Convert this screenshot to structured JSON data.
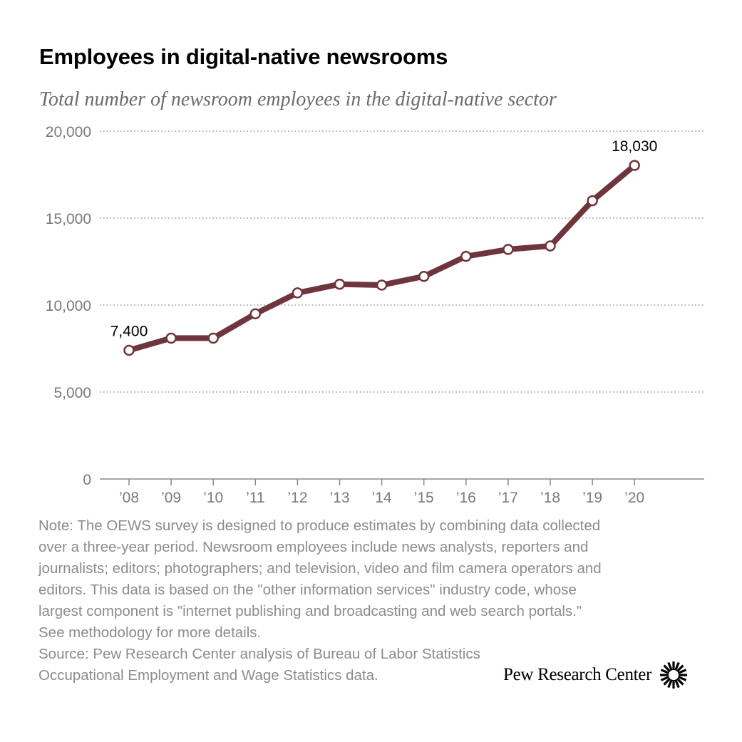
{
  "title": "Employees in digital-native newsrooms",
  "subtitle": "Total number of newsroom employees in the digital-native sector",
  "chart_data": {
    "type": "line",
    "categories": [
      "’08",
      "’09",
      "’10",
      "’11",
      "’12",
      "’13",
      "’14",
      "’15",
      "’16",
      "’17",
      "’18",
      "’19",
      "’20"
    ],
    "series": [
      {
        "values": [
          7400,
          8100,
          8100,
          9500,
          10700,
          11200,
          11150,
          11650,
          12800,
          13200,
          13400,
          16000,
          18030
        ]
      }
    ],
    "yticks": [
      "0",
      "5,000",
      "10,000",
      "15,000",
      "20,000"
    ],
    "ytick_values": [
      0,
      5000,
      10000,
      15000,
      20000
    ],
    "ylim": [
      0,
      20000
    ],
    "annotations": [
      {
        "index": 0,
        "label": "7,400"
      },
      {
        "index": 12,
        "label": "18,030"
      }
    ],
    "grid": true,
    "legend": "none",
    "colors": {
      "line": "#6e363c",
      "marker_fill": "#ffffff",
      "grid": "#999999",
      "axis": "#888888",
      "tick_text": "#7a7a7a"
    }
  },
  "notes": [
    "Note: The OEWS survey is designed to produce estimates by combining data collected over a three-year period. Newsroom employees include news analysts, reporters and journalists; editors; photographers; and television, video and film camera operators and editors. This data is based on the \"other information services\" industry code, whose largest component is \"internet publishing and broadcasting and web search portals.\" See methodology for more details.",
    "Source: Pew Research Center analysis of Bureau of Labor Statistics Occupational Employment and Wage Statistics data."
  ],
  "brand": {
    "name": "Pew Research Center",
    "icon": "pew-sunburst-icon"
  }
}
